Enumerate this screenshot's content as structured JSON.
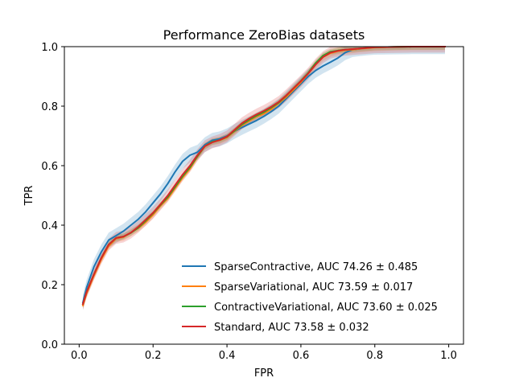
{
  "chart_data": {
    "type": "line",
    "title": "Performance ZeroBias datasets",
    "xlabel": "FPR",
    "ylabel": "TPR",
    "xlim": [
      -0.04,
      1.04
    ],
    "ylim": [
      0.0,
      1.0
    ],
    "xticks": [
      0.0,
      0.2,
      0.4,
      0.6,
      0.8,
      1.0
    ],
    "xtick_labels": [
      "0.0",
      "0.2",
      "0.4",
      "0.6",
      "0.8",
      "1.0"
    ],
    "yticks": [
      0.0,
      0.2,
      0.4,
      0.6,
      0.8,
      1.0
    ],
    "ytick_labels": [
      "0.0",
      "0.2",
      "0.4",
      "0.6",
      "0.8",
      "1.0"
    ],
    "grid": false,
    "legend_position": "lower-right",
    "series": [
      {
        "name": "SparseContractive, AUC 74.26 ± 0.485",
        "color": "#1f77b4",
        "band": 0.025,
        "x": [
          0.01,
          0.02,
          0.04,
          0.06,
          0.08,
          0.1,
          0.12,
          0.14,
          0.16,
          0.18,
          0.2,
          0.22,
          0.24,
          0.26,
          0.28,
          0.3,
          0.32,
          0.34,
          0.36,
          0.38,
          0.4,
          0.42,
          0.44,
          0.46,
          0.48,
          0.5,
          0.52,
          0.54,
          0.56,
          0.58,
          0.6,
          0.62,
          0.64,
          0.66,
          0.68,
          0.7,
          0.72,
          0.74,
          0.76,
          0.78,
          0.8,
          0.85,
          0.9,
          0.95,
          0.99
        ],
        "y": [
          0.14,
          0.19,
          0.26,
          0.31,
          0.35,
          0.365,
          0.38,
          0.4,
          0.42,
          0.445,
          0.475,
          0.505,
          0.54,
          0.58,
          0.615,
          0.635,
          0.645,
          0.67,
          0.685,
          0.69,
          0.7,
          0.715,
          0.728,
          0.74,
          0.752,
          0.766,
          0.782,
          0.8,
          0.825,
          0.85,
          0.875,
          0.9,
          0.92,
          0.935,
          0.948,
          0.962,
          0.98,
          0.99,
          0.993,
          0.996,
          0.998,
          0.999,
          1.0,
          1.0,
          1.0
        ]
      },
      {
        "name": "SparseVariational, AUC 73.59 ± 0.017",
        "color": "#ff7f0e",
        "band": 0.012,
        "x": [
          0.01,
          0.02,
          0.04,
          0.06,
          0.08,
          0.1,
          0.12,
          0.14,
          0.16,
          0.18,
          0.2,
          0.22,
          0.24,
          0.26,
          0.28,
          0.3,
          0.32,
          0.34,
          0.36,
          0.38,
          0.4,
          0.42,
          0.44,
          0.46,
          0.48,
          0.5,
          0.52,
          0.54,
          0.56,
          0.58,
          0.6,
          0.62,
          0.64,
          0.66,
          0.68,
          0.7,
          0.72,
          0.74,
          0.76,
          0.78,
          0.8,
          0.85,
          0.9,
          0.95,
          0.99
        ],
        "y": [
          0.13,
          0.17,
          0.23,
          0.285,
          0.33,
          0.355,
          0.36,
          0.375,
          0.39,
          0.41,
          0.435,
          0.465,
          0.49,
          0.525,
          0.56,
          0.59,
          0.63,
          0.665,
          0.68,
          0.685,
          0.695,
          0.715,
          0.735,
          0.75,
          0.765,
          0.775,
          0.79,
          0.81,
          0.83,
          0.855,
          0.88,
          0.91,
          0.94,
          0.965,
          0.978,
          0.985,
          0.988,
          0.99,
          0.993,
          0.995,
          0.997,
          0.999,
          1.0,
          1.0,
          1.0
        ]
      },
      {
        "name": "ContractiveVariational, AUC 73.60 ± 0.025",
        "color": "#2ca02c",
        "band": 0.01,
        "x": [
          0.01,
          0.02,
          0.04,
          0.06,
          0.08,
          0.1,
          0.12,
          0.14,
          0.16,
          0.18,
          0.2,
          0.22,
          0.24,
          0.26,
          0.28,
          0.3,
          0.32,
          0.34,
          0.36,
          0.38,
          0.4,
          0.42,
          0.44,
          0.46,
          0.48,
          0.5,
          0.52,
          0.54,
          0.56,
          0.58,
          0.6,
          0.62,
          0.64,
          0.66,
          0.68,
          0.7,
          0.72,
          0.74,
          0.76,
          0.78,
          0.8,
          0.85,
          0.9,
          0.95,
          0.99
        ],
        "y": [
          0.135,
          0.175,
          0.235,
          0.29,
          0.335,
          0.357,
          0.362,
          0.374,
          0.392,
          0.415,
          0.44,
          0.468,
          0.495,
          0.53,
          0.565,
          0.595,
          0.632,
          0.665,
          0.68,
          0.686,
          0.697,
          0.717,
          0.738,
          0.754,
          0.768,
          0.78,
          0.795,
          0.812,
          0.835,
          0.86,
          0.885,
          0.912,
          0.945,
          0.97,
          0.983,
          0.987,
          0.99,
          0.992,
          0.994,
          0.996,
          0.998,
          0.999,
          1.0,
          1.0,
          1.0
        ]
      },
      {
        "name": "Standard, AUC 73.58 ± 0.032",
        "color": "#d62728",
        "band": 0.02,
        "x": [
          0.01,
          0.02,
          0.04,
          0.06,
          0.08,
          0.1,
          0.12,
          0.14,
          0.16,
          0.18,
          0.2,
          0.22,
          0.24,
          0.26,
          0.28,
          0.3,
          0.32,
          0.34,
          0.36,
          0.38,
          0.4,
          0.42,
          0.44,
          0.46,
          0.48,
          0.5,
          0.52,
          0.54,
          0.56,
          0.58,
          0.6,
          0.62,
          0.64,
          0.66,
          0.68,
          0.7,
          0.72,
          0.74,
          0.76,
          0.78,
          0.8,
          0.85,
          0.9,
          0.95,
          0.99
        ],
        "y": [
          0.135,
          0.175,
          0.235,
          0.29,
          0.335,
          0.357,
          0.362,
          0.375,
          0.395,
          0.418,
          0.442,
          0.47,
          0.5,
          0.535,
          0.57,
          0.6,
          0.635,
          0.665,
          0.678,
          0.686,
          0.698,
          0.72,
          0.742,
          0.758,
          0.772,
          0.784,
          0.798,
          0.814,
          0.836,
          0.86,
          0.884,
          0.91,
          0.94,
          0.965,
          0.98,
          0.986,
          0.99,
          0.992,
          0.994,
          0.996,
          0.998,
          0.999,
          1.0,
          1.0,
          1.0
        ]
      }
    ]
  }
}
